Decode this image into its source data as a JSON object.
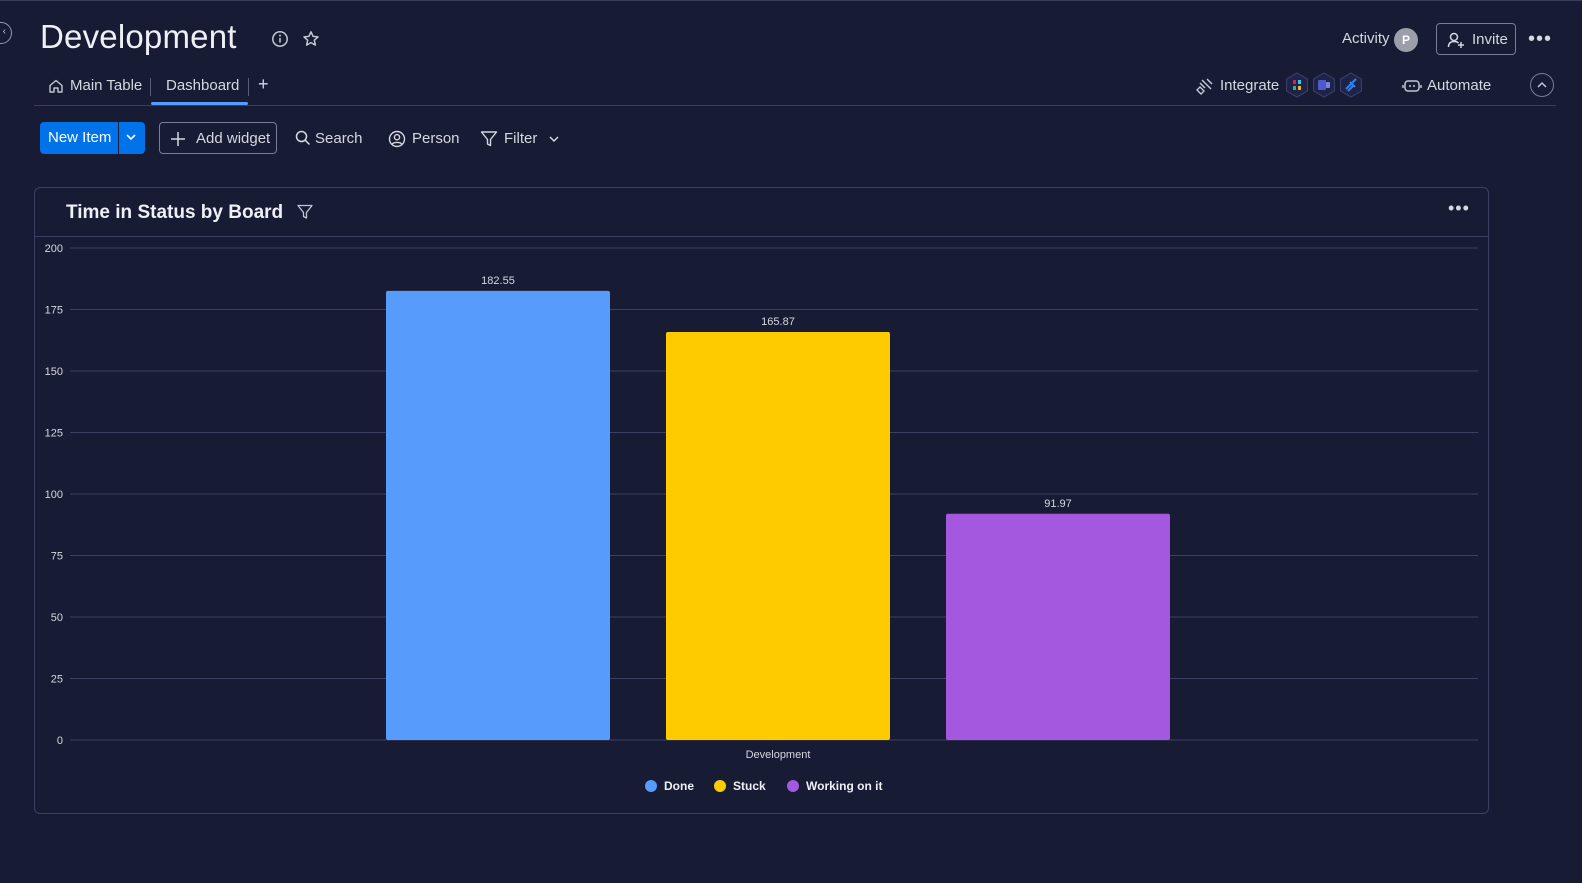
{
  "header": {
    "title": "Development",
    "activity_label": "Activity",
    "avatar_initial": "P",
    "invite_label": "Invite"
  },
  "tabs": [
    {
      "label": "Main Table"
    },
    {
      "label": "Dashboard"
    }
  ],
  "integrations": {
    "integrate_label": "Integrate",
    "automate_label": "Automate",
    "icons": [
      "slack-icon",
      "teams-icon",
      "jira-icon"
    ]
  },
  "toolbar": {
    "new_item_label": "New Item",
    "add_widget_label": "Add widget",
    "search_label": "Search",
    "person_label": "Person",
    "filter_label": "Filter"
  },
  "widget": {
    "title": "Time in Status by Board"
  },
  "chart_data": {
    "type": "bar",
    "title": "Time in Status by Board",
    "categories": [
      "Development"
    ],
    "series": [
      {
        "name": "Done",
        "values": [
          182.55
        ],
        "color": "#579bfc"
      },
      {
        "name": "Stuck",
        "values": [
          165.87
        ],
        "color": "#fdcb00"
      },
      {
        "name": "Working on it",
        "values": [
          91.97
        ],
        "color": "#a358df"
      }
    ],
    "ylim": [
      0,
      200
    ],
    "yticks": [
      0,
      25,
      50,
      75,
      100,
      125,
      150,
      175,
      200
    ],
    "grid": true,
    "legend": "bottom"
  }
}
